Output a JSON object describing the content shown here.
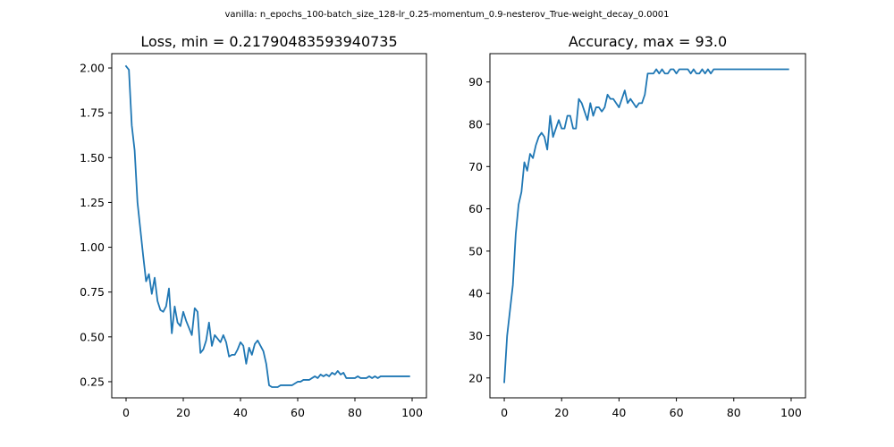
{
  "suptitle": "vanilla: n_epochs_100-batch_size_128-lr_0.25-momentum_0.9-nesterov_True-weight_decay_0.0001",
  "chart_data": [
    {
      "type": "line",
      "title": "Loss, min = 0.21790483593940735",
      "xlabel": "",
      "ylabel": "",
      "xlim": [
        -5,
        105
      ],
      "ylim": [
        0.16,
        2.08
      ],
      "xticks": [
        0,
        20,
        40,
        60,
        80,
        100
      ],
      "xtick_labels": [
        "0",
        "20",
        "40",
        "60",
        "80",
        "100"
      ],
      "yticks": [
        0.25,
        0.5,
        0.75,
        1.0,
        1.25,
        1.5,
        1.75,
        2.0
      ],
      "ytick_labels": [
        "0.25",
        "0.50",
        "0.75",
        "1.00",
        "1.25",
        "1.50",
        "1.75",
        "2.00"
      ],
      "grid": false,
      "color": "#1f77b4",
      "series": [
        {
          "x": [
            0,
            1,
            2,
            3,
            4,
            5,
            6,
            7,
            8,
            9,
            10,
            11,
            12,
            13,
            14,
            15,
            16,
            17,
            18,
            19,
            20,
            21,
            22,
            23,
            24,
            25,
            26,
            27,
            28,
            29,
            30,
            31,
            32,
            33,
            34,
            35,
            36,
            37,
            38,
            39,
            40,
            41,
            42,
            43,
            44,
            45,
            46,
            47,
            48,
            49,
            50,
            51,
            52,
            53,
            54,
            55,
            56,
            57,
            58,
            59,
            60,
            61,
            62,
            63,
            64,
            65,
            66,
            67,
            68,
            69,
            70,
            71,
            72,
            73,
            74,
            75,
            76,
            77,
            78,
            79,
            80,
            81,
            82,
            83,
            84,
            85,
            86,
            87,
            88,
            89,
            90,
            91,
            92,
            93,
            94,
            95,
            96,
            97,
            98,
            99
          ],
          "y": [
            2.01,
            1.99,
            1.68,
            1.54,
            1.25,
            1.1,
            0.95,
            0.81,
            0.85,
            0.74,
            0.83,
            0.7,
            0.65,
            0.64,
            0.67,
            0.77,
            0.52,
            0.67,
            0.58,
            0.56,
            0.64,
            0.59,
            0.55,
            0.51,
            0.66,
            0.64,
            0.41,
            0.43,
            0.48,
            0.58,
            0.45,
            0.51,
            0.49,
            0.47,
            0.51,
            0.47,
            0.39,
            0.4,
            0.4,
            0.43,
            0.47,
            0.45,
            0.35,
            0.44,
            0.4,
            0.46,
            0.48,
            0.45,
            0.42,
            0.35,
            0.23,
            0.22,
            0.22,
            0.22,
            0.23,
            0.23,
            0.23,
            0.23,
            0.23,
            0.24,
            0.25,
            0.25,
            0.26,
            0.26,
            0.26,
            0.27,
            0.28,
            0.27,
            0.29,
            0.28,
            0.29,
            0.28,
            0.3,
            0.29,
            0.31,
            0.29,
            0.3,
            0.27,
            0.27,
            0.27,
            0.27,
            0.28,
            0.27,
            0.27,
            0.27,
            0.28,
            0.27,
            0.28,
            0.27,
            0.28,
            0.28,
            0.28,
            0.28,
            0.28,
            0.28,
            0.28,
            0.28,
            0.28,
            0.28,
            0.28
          ]
        }
      ]
    },
    {
      "type": "line",
      "title": "Accuracy, max = 93.0",
      "xlabel": "",
      "ylabel": "",
      "xlim": [
        -5,
        105
      ],
      "ylim": [
        15.3,
        96.7
      ],
      "xticks": [
        0,
        20,
        40,
        60,
        80,
        100
      ],
      "xtick_labels": [
        "0",
        "20",
        "40",
        "60",
        "80",
        "100"
      ],
      "yticks": [
        20,
        30,
        40,
        50,
        60,
        70,
        80,
        90
      ],
      "ytick_labels": [
        "20",
        "30",
        "40",
        "50",
        "60",
        "70",
        "80",
        "90"
      ],
      "grid": false,
      "color": "#1f77b4",
      "series": [
        {
          "x": [
            0,
            1,
            2,
            3,
            4,
            5,
            6,
            7,
            8,
            9,
            10,
            11,
            12,
            13,
            14,
            15,
            16,
            17,
            18,
            19,
            20,
            21,
            22,
            23,
            24,
            25,
            26,
            27,
            28,
            29,
            30,
            31,
            32,
            33,
            34,
            35,
            36,
            37,
            38,
            39,
            40,
            41,
            42,
            43,
            44,
            45,
            46,
            47,
            48,
            49,
            50,
            51,
            52,
            53,
            54,
            55,
            56,
            57,
            58,
            59,
            60,
            61,
            62,
            63,
            64,
            65,
            66,
            67,
            68,
            69,
            70,
            71,
            72,
            73,
            74,
            75,
            76,
            77,
            78,
            79,
            80,
            81,
            82,
            83,
            84,
            85,
            86,
            87,
            88,
            89,
            90,
            91,
            92,
            93,
            94,
            95,
            96,
            97,
            98,
            99
          ],
          "y": [
            19,
            30,
            36,
            42,
            54,
            61,
            64,
            71,
            69,
            73,
            72,
            75,
            77,
            78,
            77,
            74,
            82,
            77,
            79,
            81,
            79,
            79,
            82,
            82,
            79,
            79,
            86,
            85,
            83,
            81,
            85,
            82,
            84,
            84,
            83,
            84,
            87,
            86,
            86,
            85,
            84,
            86,
            88,
            85,
            86,
            85,
            84,
            85,
            85,
            87,
            92,
            92,
            92,
            93,
            92,
            93,
            92,
            92,
            93,
            93,
            92,
            93,
            93,
            93,
            93,
            92,
            93,
            92,
            92,
            93,
            92,
            93,
            92,
            93,
            93,
            93,
            93,
            93,
            93,
            93,
            93,
            93,
            93,
            93,
            93,
            93,
            93,
            93,
            93,
            93,
            93,
            93,
            93,
            93,
            93,
            93,
            93,
            93,
            93,
            93
          ]
        }
      ]
    }
  ]
}
